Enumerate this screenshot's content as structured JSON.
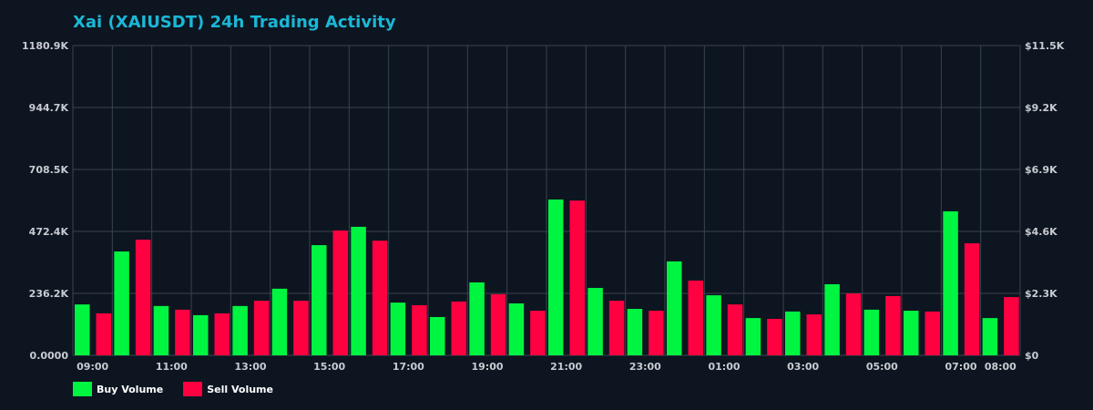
{
  "title": "Xai (XAIUSDT) 24h Trading Activity",
  "colors": {
    "background": "#0d1520",
    "grid": "#3a4350",
    "buy": "#00f541",
    "sell": "#ff0040",
    "title": "#1ab8d6",
    "text": "#c8ccd2"
  },
  "legend": [
    {
      "label": "Buy Volume",
      "color": "#00f541"
    },
    {
      "label": "Sell Volume",
      "color": "#ff0040"
    }
  ],
  "chart_data": {
    "type": "bar",
    "title": "Xai (XAIUSDT) 24h Trading Activity",
    "xlabel": "",
    "ylabel": "",
    "ylim": [
      0,
      1180.9
    ],
    "y_unit": "K",
    "y_ticks": [
      "0.0000",
      "236.2K",
      "472.4K",
      "708.5K",
      "944.7K",
      "1180.9K"
    ],
    "y2_ticks": [
      "$0",
      "$2.3K",
      "$4.6K",
      "$6.9K",
      "$9.2K",
      "$11.5K"
    ],
    "y2lim": [
      0,
      11.5
    ],
    "x_tick_labels": [
      "09:00",
      "11:00",
      "13:00",
      "15:00",
      "17:00",
      "19:00",
      "21:00",
      "23:00",
      "01:00",
      "03:00",
      "05:00",
      "07:00",
      "08:00"
    ],
    "x_tick_slots": [
      0,
      2,
      4,
      6,
      8,
      10,
      12,
      14,
      16,
      18,
      20,
      22,
      23
    ],
    "categories": [
      "09:00",
      "10:00",
      "11:00",
      "12:00",
      "13:00",
      "14:00",
      "15:00",
      "16:00",
      "17:00",
      "18:00",
      "19:00",
      "20:00",
      "21:00",
      "22:00",
      "23:00",
      "00:00",
      "01:00",
      "02:00",
      "03:00",
      "04:00",
      "05:00",
      "06:00",
      "07:00",
      "08:00"
    ],
    "grid": true,
    "legend_position": "bottom-left",
    "series": [
      {
        "name": "Buy Volume",
        "color": "#00f541",
        "values": [
          194,
          396,
          188,
          153,
          188,
          254,
          420,
          490,
          201,
          146,
          278,
          198,
          594,
          257,
          177,
          358,
          229,
          142,
          167,
          271,
          174,
          170,
          549,
          142
        ]
      },
      {
        "name": "Sell Volume",
        "color": "#ff0040",
        "values": [
          160,
          441,
          174,
          160,
          208,
          208,
          476,
          437,
          191,
          205,
          233,
          170,
          590,
          208,
          170,
          285,
          194,
          139,
          156,
          236,
          226,
          167,
          427,
          222
        ]
      }
    ]
  }
}
